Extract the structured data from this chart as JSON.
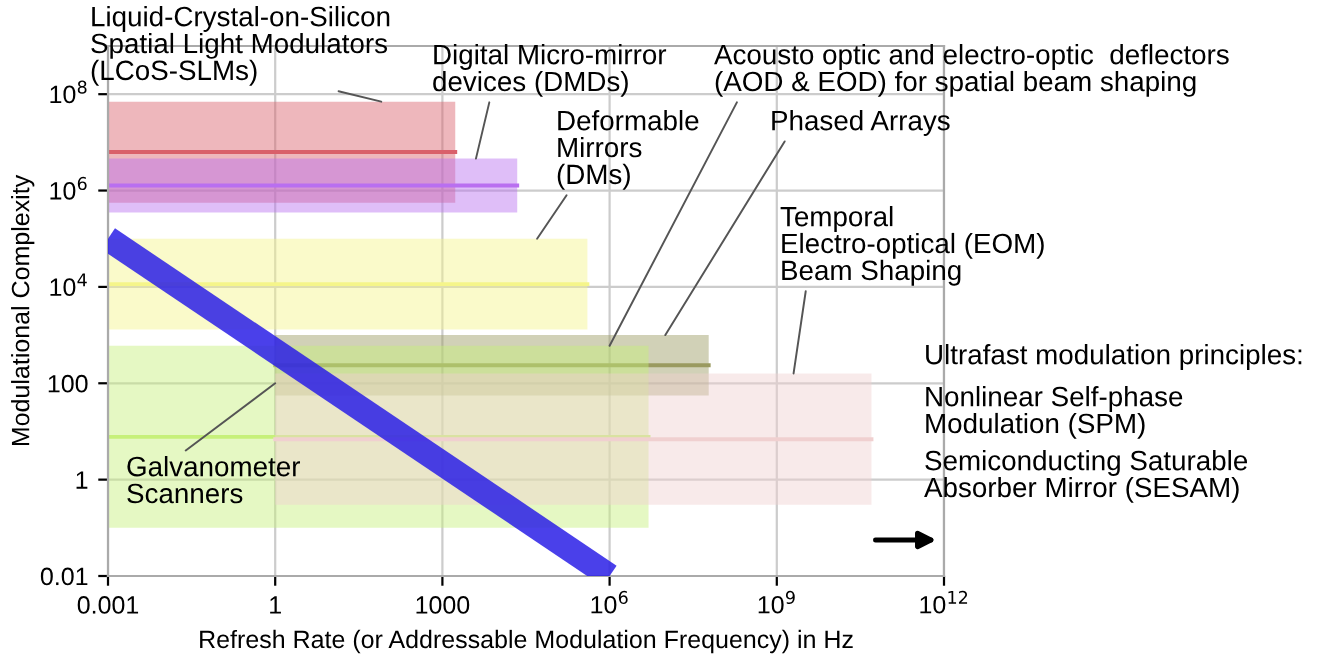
{
  "chart_data": {
    "type": "line",
    "xlabel": "Refresh Rate (or Addressable Modulation Frequency) in Hz",
    "ylabel": "Modulational Complexity",
    "log": "xy",
    "xlim": [
      0.001,
      1000000000000
    ],
    "ylim": [
      0.01,
      1000000000
    ],
    "xticks": [
      0.001,
      1,
      1000,
      {
        "value": 1000000,
        "label": "10$^{6}$"
      },
      {
        "value": 1000000000,
        "label": "10$^{9}$"
      },
      {
        "value": 1000000000000,
        "label": "10$^{12}$"
      }
    ],
    "yticks": [
      0.01,
      1,
      100,
      {
        "value": 10000,
        "label": "10$^{4}$"
      },
      {
        "value": 1000000,
        "label": "10$^{6}$"
      },
      {
        "value": 100000000,
        "label": "10$^{8}$"
      }
    ],
    "grid": true,
    "legend": false,
    "series": [
      {
        "color": "#d9606a",
        "x": [
          0.001,
          1700
        ],
        "values": [
          6300000,
          6300000
        ],
        "upper": [
          70000000,
          70000000
        ],
        "lower": [
          560000,
          560000
        ]
      },
      {
        "color": "#b96ff0",
        "x": [
          0.001,
          22000
        ],
        "values": [
          1270000,
          1270000
        ],
        "upper": [
          4600000,
          4600000
        ],
        "lower": [
          350000,
          350000
        ]
      },
      {
        "color": "#f5f58a",
        "x": [
          0.001,
          400000
        ],
        "values": [
          11400,
          11400
        ],
        "upper": [
          100000,
          100000
        ],
        "lower": [
          1300,
          1300
        ]
      },
      {
        "color": "#9a9a60",
        "x": [
          1,
          60000000
        ],
        "values": [
          237,
          237
        ],
        "upper": [
          1000,
          1000
        ],
        "lower": [
          56,
          56
        ]
      },
      {
        "color": "#c6f07a",
        "x": [
          0.001,
          5000000
        ],
        "values": [
          7.7,
          7.7
        ],
        "upper": [
          600,
          600
        ],
        "lower": [
          0.1,
          0.1
        ]
      },
      {
        "color": "#f0d0d0",
        "x": [
          1,
          50000000000
        ],
        "values": [
          6.9,
          6.9
        ],
        "upper": [
          160,
          160
        ],
        "lower": [
          0.3,
          0.3
        ]
      },
      {
        "color": "#2a1fe6",
        "x": [
          0.001,
          1000000
        ],
        "values": [
          100000,
          0.01
        ]
      }
    ],
    "annotations": [
      {
        "text": "Liquid-Crystal-on-Silicon\nSpatial Light Modulators\n(LCoS-SLMs)",
        "x": 80,
        "y": 70000000
      },
      {
        "text": "Digital Micro-mirror\ndevices (DMDs)",
        "x": 4000,
        "y": 4600000
      },
      {
        "text": "Deformable\nMirrors\n(DMs)",
        "x": 50000,
        "y": 100000
      },
      {
        "text": "Acousto optic and electro-optic  deflectors\n(AOD & EOD) for spatial beam shaping",
        "x": 1000000,
        "y": 600
      },
      {
        "text": "Phased Arrays",
        "x": 10000000,
        "y": 1000
      },
      {
        "text": "Temporal\nElectro-optical (EOM)\nBeam Shaping",
        "x": 2000000000,
        "y": 160
      },
      {
        "text": "Galvanometer\nScanners",
        "x": 1,
        "y": 100
      },
      "Ultrafast modulation principles:",
      "Nonlinear Self-phase\nModulation (SPM)",
      "Semiconducting Saturable\nAbsorber Mirror (SESAM)"
    ]
  }
}
